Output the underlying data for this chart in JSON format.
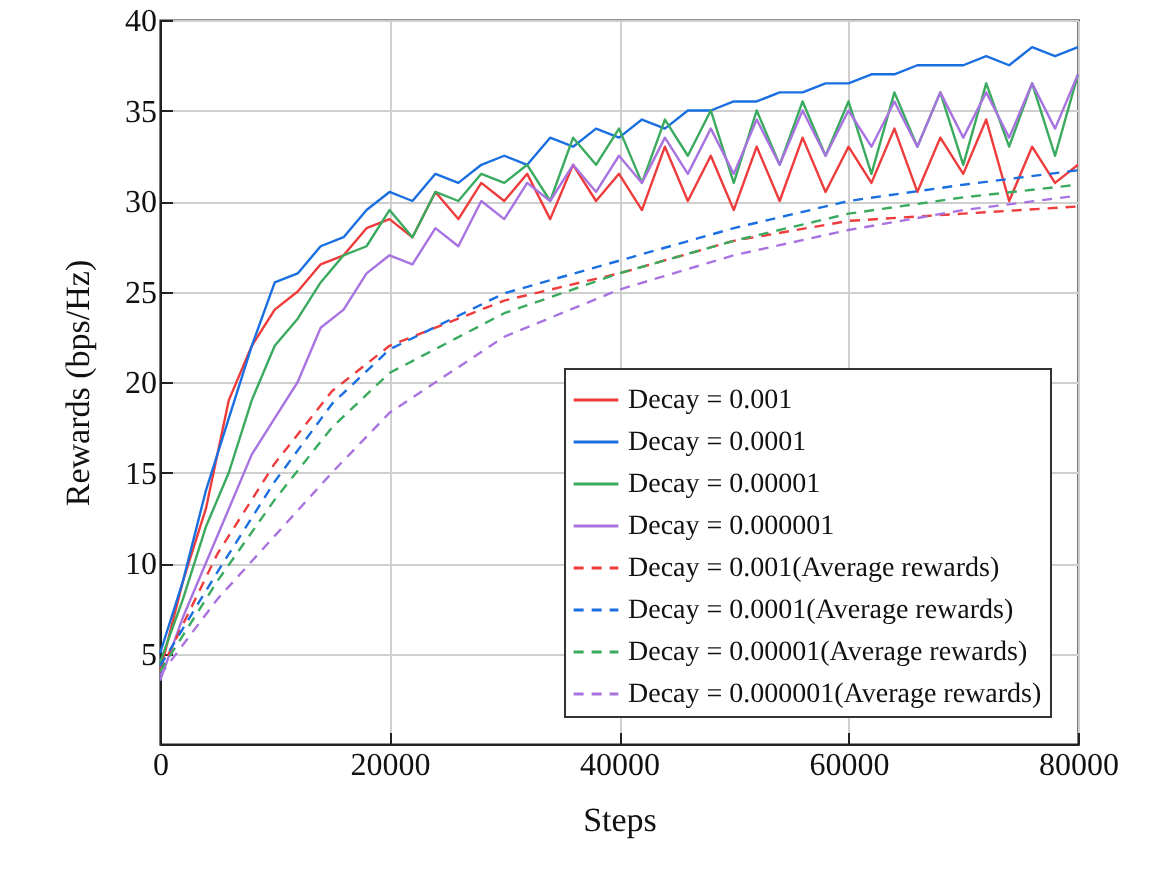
{
  "chart_data": {
    "type": "line",
    "xlabel": "Steps",
    "ylabel": "Rewards (bps/Hz)",
    "x": [
      0,
      2000,
      4000,
      6000,
      8000,
      10000,
      12000,
      14000,
      16000,
      18000,
      20000,
      22000,
      24000,
      26000,
      28000,
      30000,
      32000,
      34000,
      36000,
      38000,
      40000,
      42000,
      44000,
      46000,
      48000,
      50000,
      52000,
      54000,
      56000,
      58000,
      60000,
      62000,
      64000,
      66000,
      68000,
      70000,
      72000,
      74000,
      76000,
      78000,
      80000
    ],
    "xlim": [
      0,
      80000
    ],
    "xticks": [
      0,
      20000,
      40000,
      60000,
      80000
    ],
    "ylim": [
      0,
      40
    ],
    "yticks": [
      5,
      10,
      15,
      20,
      25,
      30,
      35,
      40
    ],
    "grid": true,
    "legend": "bottom right",
    "series": [
      {
        "name": "Decay = 0.001",
        "color": "#ee3b3b",
        "line_style": "solid",
        "values": [
          4,
          9,
          13,
          19,
          22,
          24,
          25,
          26.5,
          27,
          28.5,
          29,
          28,
          30.5,
          29,
          31,
          30,
          31.5,
          29,
          32,
          30,
          31.5,
          29.5,
          33,
          30,
          32.5,
          29.5,
          33,
          30,
          33.5,
          30.5,
          33,
          31,
          34,
          30.5,
          33.5,
          31.5,
          34.5,
          30,
          33,
          31,
          32
        ]
      },
      {
        "name": "Decay = 0.0001",
        "color": "#1a6fe0",
        "line_style": "solid",
        "values": [
          5,
          9,
          14,
          18,
          22,
          25.5,
          26,
          27.5,
          28,
          29.5,
          30.5,
          30,
          31.5,
          31,
          32,
          32.5,
          32,
          33.5,
          33,
          34,
          33.5,
          34.5,
          34,
          35,
          35,
          35.5,
          35.5,
          36,
          36,
          36.5,
          36.5,
          37,
          37,
          37.5,
          37.5,
          37.5,
          38,
          37.5,
          38.5,
          38,
          38.5
        ]
      },
      {
        "name": "Decay = 0.00001",
        "color": "#3aaa5e",
        "line_style": "solid",
        "values": [
          4.5,
          8,
          12,
          15,
          19,
          22,
          23.5,
          25.5,
          27,
          27.5,
          29.5,
          28,
          30.5,
          30,
          31.5,
          31,
          32,
          30,
          33.5,
          32,
          34,
          31,
          34.5,
          32.5,
          35,
          31,
          35,
          32,
          35.5,
          32.5,
          35.5,
          31.5,
          36,
          33,
          36,
          32,
          36.5,
          33,
          36.5,
          32.5,
          37
        ]
      },
      {
        "name": "Decay = 0.000001",
        "color": "#a873e0",
        "line_style": "solid",
        "values": [
          3.5,
          7,
          10,
          13,
          16,
          18,
          20,
          23,
          24,
          26,
          27,
          26.5,
          28.5,
          27.5,
          30,
          29,
          31,
          30,
          32,
          30.5,
          32.5,
          31,
          33.5,
          31.5,
          34,
          31.5,
          34.5,
          32,
          35,
          32.5,
          35,
          33,
          35.5,
          33,
          36,
          33.5,
          36,
          33.5,
          36.5,
          34,
          37
        ]
      },
      {
        "name": "Decay = 0.001(Average rewards)",
        "color": "#ee3b3b",
        "line_style": "dashed",
        "x": [
          0,
          5000,
          10000,
          15000,
          20000,
          30000,
          40000,
          50000,
          60000,
          70000,
          80000
        ],
        "values": [
          4,
          10.5,
          15.5,
          19.5,
          22,
          24.5,
          26,
          27.8,
          28.9,
          29.3,
          29.7
        ]
      },
      {
        "name": "Decay = 0.0001(Average rewards)",
        "color": "#1a6fe0",
        "line_style": "dashed",
        "x": [
          0,
          5000,
          10000,
          15000,
          20000,
          30000,
          40000,
          50000,
          60000,
          70000,
          80000
        ],
        "values": [
          4.3,
          9.5,
          14.5,
          18.8,
          21.8,
          24.9,
          26.7,
          28.5,
          30,
          30.9,
          31.7
        ]
      },
      {
        "name": "Decay = 0.00001(Average rewards)",
        "color": "#3aaa5e",
        "line_style": "dashed",
        "x": [
          0,
          5000,
          10000,
          15000,
          20000,
          30000,
          40000,
          50000,
          60000,
          70000,
          80000
        ],
        "values": [
          4,
          9,
          13.5,
          17.5,
          20.5,
          23.8,
          26,
          27.8,
          29.3,
          30.2,
          30.9
        ]
      },
      {
        "name": "Decay = 0.000001(Average rewards)",
        "color": "#a873e0",
        "line_style": "dashed",
        "x": [
          0,
          5000,
          10000,
          15000,
          20000,
          30000,
          40000,
          50000,
          60000,
          70000,
          80000
        ],
        "values": [
          3.8,
          8,
          11.5,
          15,
          18.3,
          22.5,
          25.1,
          27,
          28.4,
          29.5,
          30.3
        ]
      }
    ]
  }
}
